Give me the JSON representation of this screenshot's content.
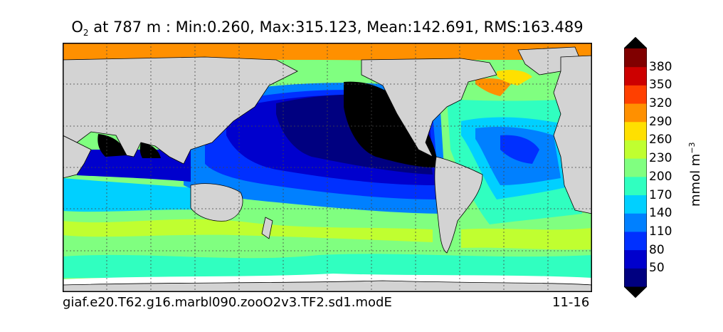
{
  "title": {
    "species": "O",
    "subscript": "2",
    "text": " at 787 m : Min:0.260, Max:315.123, Mean:142.691, RMS:163.489"
  },
  "caption": {
    "case": "giaf.e20.T62.g16.marbl090.zooO2v3.TF2.sd1.modE",
    "months": "11-16"
  },
  "colorbar": {
    "units": "mmol m",
    "units_exp": "−3",
    "ticks": [
      "50",
      "80",
      "110",
      "140",
      "170",
      "200",
      "230",
      "260",
      "290",
      "320",
      "350",
      "380"
    ],
    "colors": [
      "#000080",
      "#0000cd",
      "#0030ff",
      "#0080ff",
      "#00d0ff",
      "#30ffc0",
      "#80ff80",
      "#c0ff30",
      "#ffe000",
      "#ff9000",
      "#ff4000",
      "#cd0000",
      "#800000"
    ],
    "under_color": "#000000",
    "over_color": "#000000"
  },
  "map_colors": {
    "land": "#d3d3d3",
    "sea_ice": "#ffffff"
  }
}
